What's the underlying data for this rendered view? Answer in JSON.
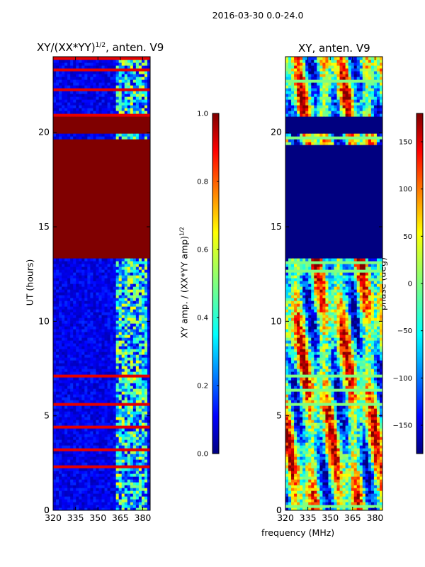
{
  "figure": {
    "suptitle": "2016-03-30 0.0-24.0",
    "shared_xlabel": "frequency (MHz)"
  },
  "chart_data": [
    {
      "type": "heatmap",
      "title": "XY/(XX*YY)",
      "title_exponent": "1/2",
      "title_suffix": ", anten. V9",
      "xlabel": "",
      "ylabel": "UT (hours)",
      "xlim": [
        320,
        385
      ],
      "ylim": [
        0,
        24
      ],
      "xticks": [
        320,
        335,
        350,
        365,
        380
      ],
      "yticks": [
        0,
        5,
        10,
        15,
        20
      ],
      "colorbar": {
        "label": "XY amp. / (XX*YY amp)",
        "label_exponent": "1/2",
        "range": [
          0.0,
          1.0
        ],
        "ticks": [
          "0.0",
          "0.2",
          "0.4",
          "0.6",
          "0.8",
          "1.0"
        ]
      },
      "bands": [
        {
          "from": 13.3,
          "to": 19.6,
          "value": 1.0
        },
        {
          "from": 19.9,
          "to": 20.8,
          "value": 1.0
        }
      ],
      "active_band_mhz": [
        362,
        382
      ]
    },
    {
      "type": "heatmap",
      "title": "XY, anten. V9",
      "xlabel": "frequency (MHz)",
      "ylabel": "",
      "xlim": [
        320,
        385
      ],
      "ylim": [
        0,
        24
      ],
      "xticks": [
        320,
        335,
        350,
        365,
        380
      ],
      "yticks": [
        0,
        5,
        10,
        15,
        20
      ],
      "colorbar": {
        "label": "phase (deg)",
        "range": [
          -180,
          180
        ],
        "ticks": [
          "−150",
          "−100",
          "−50",
          "0",
          "50",
          "100",
          "150"
        ]
      },
      "bands": [
        {
          "from": 13.3,
          "to": 19.4,
          "value": -180
        },
        {
          "from": 19.9,
          "to": 20.8,
          "value": -180
        }
      ]
    }
  ],
  "colors": {
    "jet_low": "#00007f",
    "jet_high": "#7f0000"
  }
}
